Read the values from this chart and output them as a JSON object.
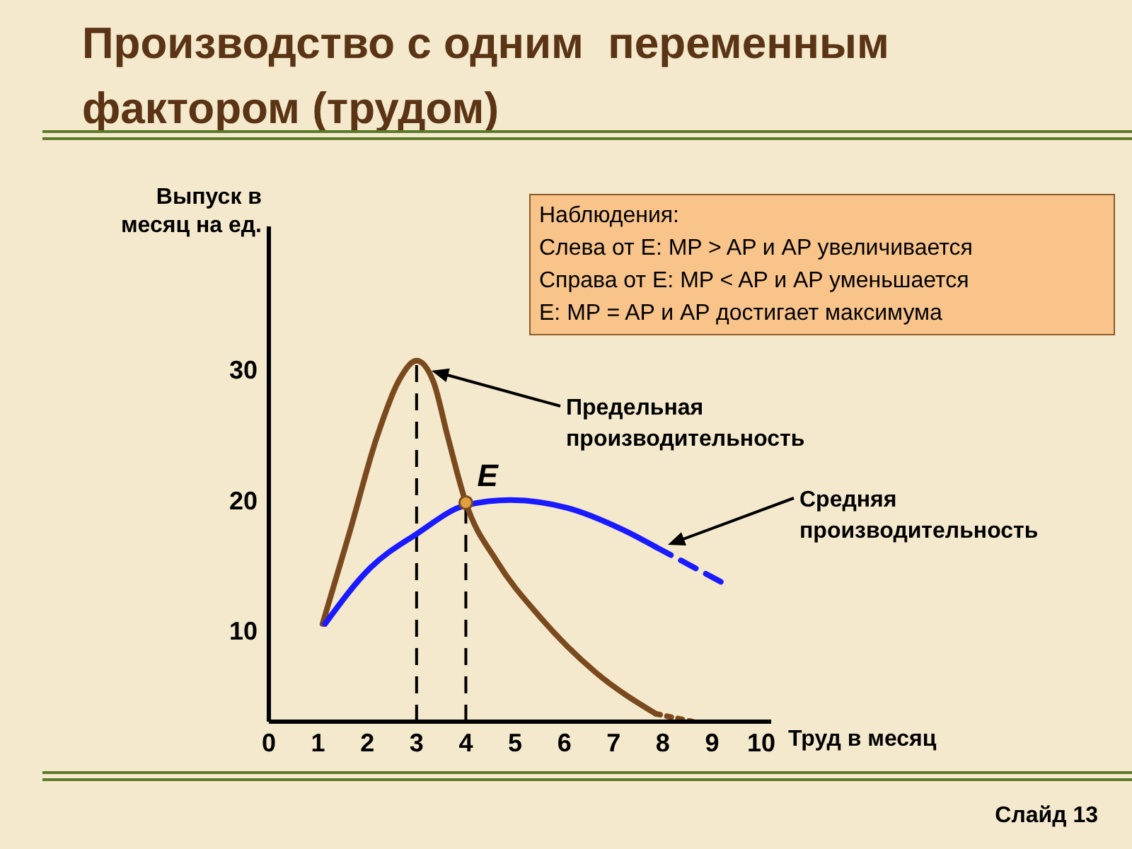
{
  "chart_data": {
    "type": "line",
    "title": "Производство с одним  переменным фактором (трудом)",
    "xlabel": "Труд в месяц",
    "ylabel": "Выпуск в месяц на ед.",
    "xlim": [
      0,
      10.2
    ],
    "ylim": [
      3,
      41
    ],
    "xticks": [
      0,
      1,
      2,
      3,
      4,
      5,
      6,
      7,
      8,
      9,
      10
    ],
    "yticks": [
      10,
      20,
      30
    ],
    "marker": "none",
    "line_style": "solid",
    "series": [
      {
        "color": "#7a4a1e",
        "x": [
          1.09,
          1.63,
          2.2,
          2.63,
          3,
          3.34,
          3.63,
          4,
          4.63,
          5.49,
          6.63,
          7.86
        ],
        "values": [
          10.5,
          17.4,
          24.9,
          29.1,
          30.7,
          29.1,
          24.9,
          19.8,
          15.3,
          11.1,
          6.8,
          3.6
        ]
      },
      {
        "color": "#7a4a1e",
        "line_style": "dotted",
        "x": [
          7.86,
          8.6
        ],
        "values": [
          3.6,
          3
        ]
      },
      {
        "color": "#1a1aff",
        "x": [
          1.14,
          2.06,
          3,
          4,
          4.91,
          6.06,
          7.2,
          7.86
        ],
        "values": [
          10.5,
          14.8,
          17.4,
          19.6,
          20,
          19.4,
          17.7,
          16.4
        ]
      },
      {
        "color": "#1a1aff",
        "line_style": "dashed",
        "x": [
          7.86,
          9.34
        ],
        "values": [
          16.4,
          13.4
        ]
      },
      {
        "type": "scatter",
        "marker": "circle",
        "color": "#e0a040",
        "x": [
          4
        ],
        "values": [
          19.8
        ]
      }
    ],
    "ref_lines": [
      {
        "axis": "x",
        "value": 3,
        "label": null,
        "line_style": "dashed",
        "color": "#000000"
      },
      {
        "axis": "x",
        "value": 4,
        "label": null,
        "line_style": "dashed",
        "color": "#000000"
      }
    ],
    "annotations": [
      "Наблюдения:",
      "Слева от Е: MP > AP и AP увеличивается",
      "Справа от Е: MP < AP и AP уменьшается",
      "Е: MP = AP и AP достигает максимума",
      "Предельная производительность",
      "Средняя производительность",
      {
        "text": "Е",
        "x": 4,
        "y": 19.8
      },
      "Слайд 13"
    ]
  }
}
